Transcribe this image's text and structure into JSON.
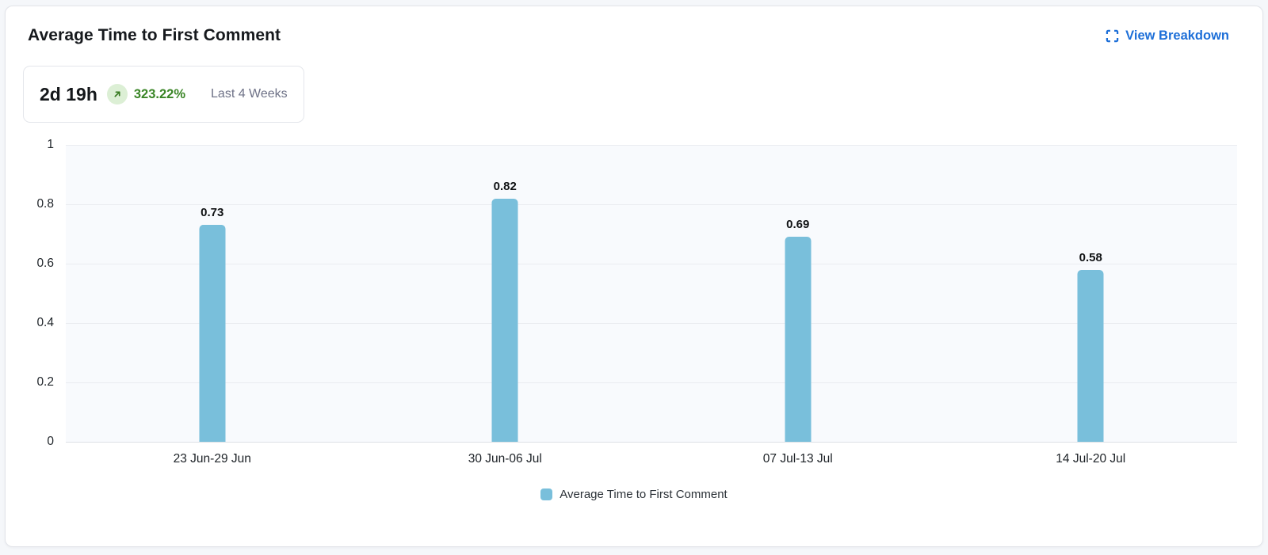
{
  "header": {
    "title": "Average Time to First Comment",
    "view_breakdown_label": "View Breakdown",
    "view_breakdown_icon": "expand-icon"
  },
  "summary": {
    "value": "2d 19h",
    "trend_icon": "arrow-up-right-icon",
    "trend_direction": "up",
    "change_pct": "323.22%",
    "period_label": "Last 4 Weeks"
  },
  "colors": {
    "bar": "#79bfdb",
    "link": "#1d6fd8",
    "positive": "#3a8526",
    "positive_bg": "#dcefd5"
  },
  "chart_data": {
    "type": "bar",
    "title": "Average Time to First Comment",
    "categories": [
      "23 Jun-29 Jun",
      "30 Jun-06 Jul",
      "07 Jul-13 Jul",
      "14 Jul-20 Jul"
    ],
    "values": [
      0.73,
      0.82,
      0.69,
      0.58
    ],
    "value_labels": [
      "0.73",
      "0.82",
      "0.69",
      "0.58"
    ],
    "xlabel": "",
    "ylabel": "",
    "ylim": [
      0,
      1
    ],
    "yticks": [
      "0",
      "0.2",
      "0.4",
      "0.6",
      "0.8",
      "1"
    ],
    "grid": true,
    "legend": [
      {
        "label": "Average Time to First Comment",
        "color": "#79bfdb"
      }
    ],
    "legend_position": "bottom"
  }
}
